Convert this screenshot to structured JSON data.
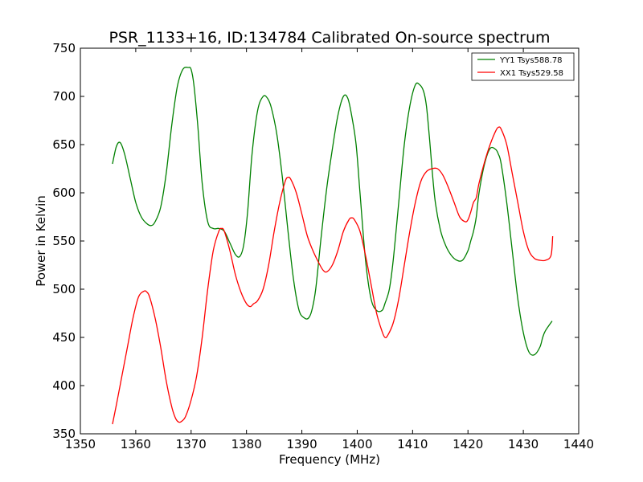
{
  "chart_data": {
    "type": "line",
    "title": "PSR_1133+16, ID:134784 Calibrated On-source spectrum",
    "xlabel": "Frequency (MHz)",
    "ylabel": "Power in Kelvin",
    "xlim": [
      1350,
      1440
    ],
    "ylim": [
      350,
      750
    ],
    "x_ticks": [
      1350,
      1360,
      1370,
      1380,
      1390,
      1400,
      1410,
      1420,
      1430,
      1440
    ],
    "y_ticks": [
      350,
      400,
      450,
      500,
      550,
      600,
      650,
      700,
      750
    ],
    "grid": false,
    "legend_position": "top-right",
    "series": [
      {
        "name": "YY1 Tsys588.78",
        "color": "#008000",
        "x": [
          1355.8,
          1356.5,
          1357.2,
          1358,
          1359,
          1360,
          1361,
          1362,
          1362.8,
          1363.5,
          1364.5,
          1365.5,
          1366.5,
          1367.5,
          1368.5,
          1369.5,
          1370,
          1370.5,
          1371.2,
          1372,
          1373,
          1374,
          1375,
          1376,
          1377,
          1378,
          1378.8,
          1379.5,
          1380.2,
          1381,
          1382,
          1383,
          1383.8,
          1384.5,
          1385.5,
          1386.5,
          1387.5,
          1388.5,
          1389.5,
          1390.5,
          1391.2,
          1391.8,
          1392.5,
          1393.5,
          1394.5,
          1395.5,
          1396.5,
          1397.5,
          1398.3,
          1399,
          1399.8,
          1400.5,
          1401.5,
          1402.5,
          1403.5,
          1404.5,
          1405,
          1405.8,
          1406.5,
          1407.5,
          1408.5,
          1409.5,
          1410.5,
          1411.3,
          1412,
          1412.5,
          1413,
          1414,
          1415,
          1416,
          1417,
          1418,
          1419,
          1420,
          1420.5,
          1421,
          1421.5,
          1422,
          1423,
          1424,
          1425,
          1425.5,
          1426,
          1427,
          1428,
          1429,
          1430,
          1431,
          1432,
          1433,
          1433.5,
          1434,
          1435.2
        ],
        "values": [
          630,
          648,
          652,
          640,
          615,
          590,
          575,
          568,
          566,
          570,
          585,
          620,
          670,
          710,
          728,
          730,
          728,
          712,
          670,
          610,
          570,
          563,
          563,
          560,
          548,
          536,
          534,
          546,
          580,
          640,
          685,
          700,
          698,
          688,
          660,
          615,
          560,
          510,
          478,
          470,
          470,
          478,
          500,
          555,
          605,
          645,
          680,
          700,
          698,
          680,
          650,
          600,
          530,
          490,
          478,
          478,
          485,
          500,
          530,
          590,
          650,
          690,
          712,
          712,
          705,
          690,
          660,
          595,
          562,
          545,
          535,
          530,
          530,
          540,
          550,
          560,
          575,
          600,
          630,
          646,
          645,
          640,
          630,
          590,
          540,
          490,
          455,
          435,
          432,
          440,
          450,
          457,
          467
        ]
      },
      {
        "name": "XX1 Tsys529.58",
        "color": "#ff0000",
        "x": [
          1355.8,
          1356.5,
          1357.5,
          1358.5,
          1359.5,
          1360.5,
          1361.5,
          1362,
          1362.5,
          1363.5,
          1364.5,
          1365.5,
          1366.5,
          1367.2,
          1367.8,
          1368.3,
          1369,
          1370,
          1371,
          1372,
          1373,
          1374,
          1375,
          1375.5,
          1376,
          1377,
          1378,
          1379,
          1380,
          1380.7,
          1381.3,
          1382,
          1383,
          1384,
          1385,
          1386,
          1387,
          1387.5,
          1388,
          1389,
          1390,
          1391,
          1392,
          1393,
          1393.8,
          1394.5,
          1395.5,
          1396.5,
          1397.5,
          1398.5,
          1399,
          1399.5,
          1400.5,
          1401.5,
          1402.5,
          1403.5,
          1404.5,
          1405,
          1405.5,
          1406.5,
          1407.5,
          1408.5,
          1409.5,
          1410.5,
          1411.5,
          1412.5,
          1413.5,
          1414.5,
          1415.5,
          1416.5,
          1417.5,
          1418.5,
          1419.5,
          1420,
          1420.5,
          1421,
          1421.5,
          1422,
          1423,
          1424,
          1425,
          1425.5,
          1426,
          1427,
          1428,
          1429,
          1430,
          1431,
          1432,
          1433,
          1434,
          1435,
          1435.3
        ],
        "values": [
          360,
          380,
          410,
          440,
          470,
          492,
          498,
          497,
          492,
          470,
          440,
          405,
          378,
          366,
          362,
          363,
          368,
          385,
          410,
          450,
          500,
          540,
          560,
          563,
          560,
          540,
          515,
          497,
          485,
          482,
          485,
          488,
          500,
          525,
          560,
          590,
          612,
          616,
          614,
          600,
          578,
          555,
          540,
          528,
          520,
          518,
          525,
          540,
          560,
          572,
          574,
          572,
          560,
          535,
          505,
          475,
          456,
          450,
          452,
          465,
          490,
          525,
          560,
          590,
          612,
          622,
          625,
          625,
          618,
          605,
          590,
          575,
          570,
          572,
          580,
          590,
          595,
          610,
          632,
          650,
          664,
          668,
          666,
          650,
          620,
          590,
          560,
          540,
          532,
          530,
          530,
          535,
          555
        ]
      }
    ]
  }
}
